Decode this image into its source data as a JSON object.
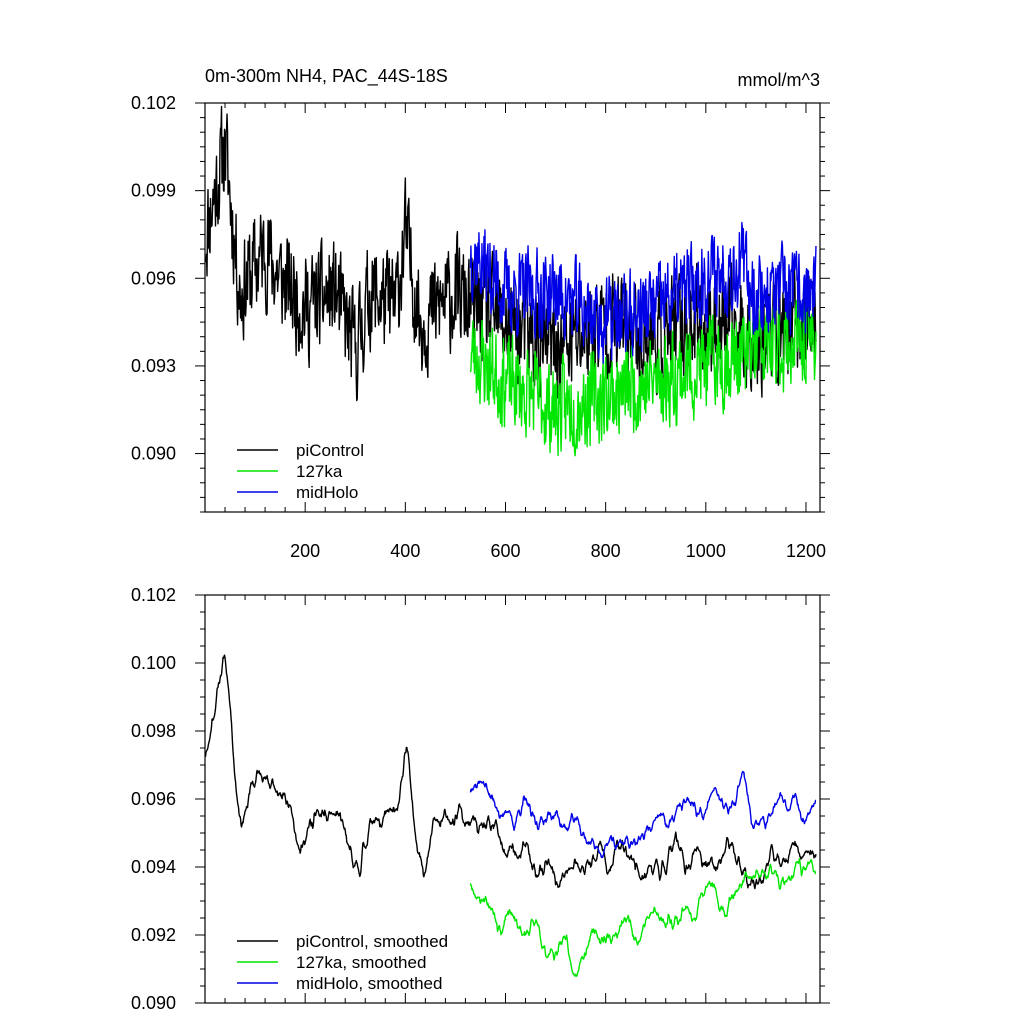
{
  "figure": {
    "title_left": "0m-300m NH4, PAC_44S-18S",
    "title_right": "mmol/m^3"
  },
  "colors": {
    "piControl": "#000000",
    "127ka": "#00e600",
    "midHolo": "#0000e6"
  },
  "chart_data": [
    {
      "type": "line",
      "panel": "top",
      "title": "0m-300m NH4, PAC_44S-18S",
      "units": "mmol/m^3",
      "xlim": [
        0,
        1228
      ],
      "ylim": [
        0.088,
        0.102
      ],
      "xticks": [
        200,
        400,
        600,
        800,
        1000,
        1200
      ],
      "yticks": [
        0.09,
        0.093,
        0.096,
        0.099,
        0.102
      ],
      "ytick_labels": [
        "0.090",
        "0.093",
        "0.096",
        "0.099",
        "0.102"
      ],
      "xtick_labels": [
        "200",
        "400",
        "600",
        "800",
        "1000",
        "1200"
      ],
      "legend": [
        "piControl",
        "127ka",
        "midHolo"
      ],
      "series": [
        {
          "name": "piControl",
          "x_range": [
            1,
            1220
          ],
          "n": 1220,
          "mean": 0.0957,
          "mean_after_530": 0.0948,
          "amp": 0.0016,
          "anchors": [
            [
              1,
              0.0975
            ],
            [
              40,
              0.1005
            ],
            [
              70,
              0.0955
            ],
            [
              120,
              0.097
            ],
            [
              150,
              0.096
            ],
            [
              200,
              0.095
            ],
            [
              260,
              0.0955
            ],
            [
              300,
              0.0935
            ],
            [
              330,
              0.0955
            ],
            [
              380,
              0.095
            ],
            [
              400,
              0.0975
            ],
            [
              430,
              0.0945
            ],
            [
              500,
              0.0955
            ],
            [
              530,
              0.095
            ],
            [
              600,
              0.0945
            ],
            [
              700,
              0.0935
            ],
            [
              800,
              0.0945
            ],
            [
              900,
              0.094
            ],
            [
              1000,
              0.0945
            ],
            [
              1100,
              0.094
            ],
            [
              1220,
              0.0945
            ]
          ],
          "seed": 11
        },
        {
          "name": "127ka",
          "x_range": [
            530,
            1220
          ],
          "n": 691,
          "mean": 0.0932,
          "amp": 0.0014,
          "anchors": [
            [
              530,
              0.0935
            ],
            [
              600,
              0.0925
            ],
            [
              700,
              0.0915
            ],
            [
              800,
              0.092
            ],
            [
              900,
              0.0925
            ],
            [
              1000,
              0.093
            ],
            [
              1100,
              0.0935
            ],
            [
              1220,
              0.094
            ]
          ],
          "seed": 23
        },
        {
          "name": "midHolo",
          "x_range": [
            530,
            1220
          ],
          "n": 691,
          "mean": 0.0952,
          "amp": 0.0013,
          "anchors": [
            [
              530,
              0.097
            ],
            [
              600,
              0.0955
            ],
            [
              700,
              0.0955
            ],
            [
              800,
              0.0945
            ],
            [
              900,
              0.095
            ],
            [
              1000,
              0.096
            ],
            [
              1070,
              0.0965
            ],
            [
              1100,
              0.0955
            ],
            [
              1220,
              0.0955
            ]
          ],
          "seed": 37
        }
      ]
    },
    {
      "type": "line",
      "panel": "bottom",
      "xlim": [
        0,
        1228
      ],
      "ylim": [
        0.09,
        0.102
      ],
      "xticks": [
        200,
        400,
        600,
        800,
        1000,
        1200
      ],
      "yticks": [
        0.09,
        0.092,
        0.094,
        0.096,
        0.098,
        0.1,
        0.102
      ],
      "ytick_labels": [
        "0.090",
        "0.092",
        "0.094",
        "0.096",
        "0.098",
        "0.100",
        "0.102"
      ],
      "legend": [
        "piControl, smoothed",
        "127ka, smoothed",
        "midHolo, smoothed"
      ],
      "series": [
        {
          "name": "piControl, smoothed",
          "x_range": [
            1,
            1220
          ],
          "n": 1220,
          "smooth": 9,
          "seed": 11
        },
        {
          "name": "127ka, smoothed",
          "x_range": [
            530,
            1220
          ],
          "n": 691,
          "smooth": 9,
          "seed": 23
        },
        {
          "name": "midHolo, smoothed",
          "x_range": [
            530,
            1220
          ],
          "n": 691,
          "smooth": 9,
          "seed": 37
        }
      ]
    }
  ]
}
